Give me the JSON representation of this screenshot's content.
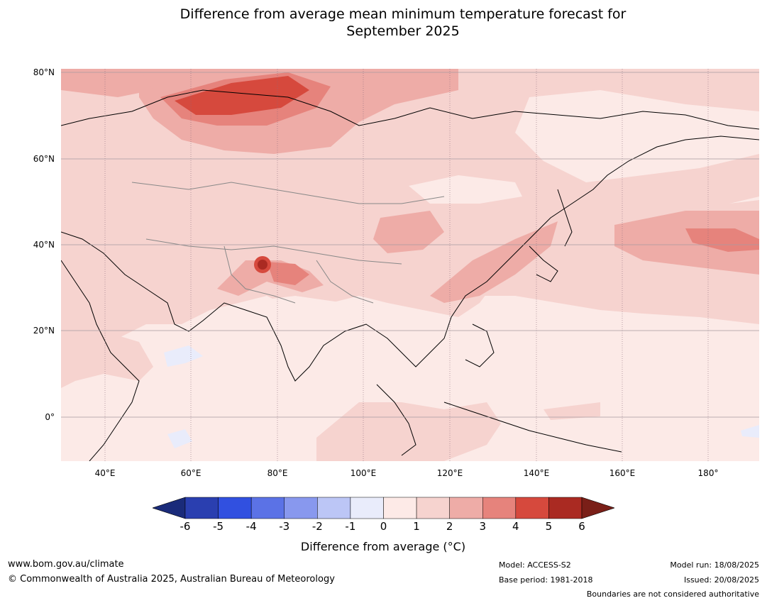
{
  "title_line1": "Difference from average mean minimum temperature forecast for",
  "title_line2": "September 2025",
  "latitude_labels": [
    "80°N",
    "60°N",
    "40°N",
    "20°N",
    "0°"
  ],
  "longitude_labels": [
    "40°E",
    "60°E",
    "80°E",
    "100°E",
    "120°E",
    "140°E",
    "160°E",
    "180°"
  ],
  "colorbar": {
    "title": "Difference from average (°C)",
    "ticks": [
      "-6",
      "-5",
      "-4",
      "-3",
      "-2",
      "-1",
      "0",
      "1",
      "2",
      "3",
      "4",
      "5",
      "6"
    ],
    "colors": [
      "#1a2b7a",
      "#2a3fb0",
      "#3150e0",
      "#5b72e6",
      "#8898ee",
      "#bcc6f6",
      "#e9ecfb",
      "#fdeae7",
      "#f6d3cf",
      "#eeaca7",
      "#e6837c",
      "#d6493d",
      "#aa2a22",
      "#7a1f18"
    ]
  },
  "footer": {
    "website": "www.bom.gov.au/climate",
    "copyright": "© Commonwealth of Australia 2025, Australian Bureau of Meteorology",
    "model": "Model: ACCESS-S2",
    "base_period": "Base period: 1981-2018",
    "model_run": "Model run: 18/08/2025",
    "issued": "Issued: 20/08/2025",
    "boundaries": "Boundaries are not considered authoritative"
  }
}
